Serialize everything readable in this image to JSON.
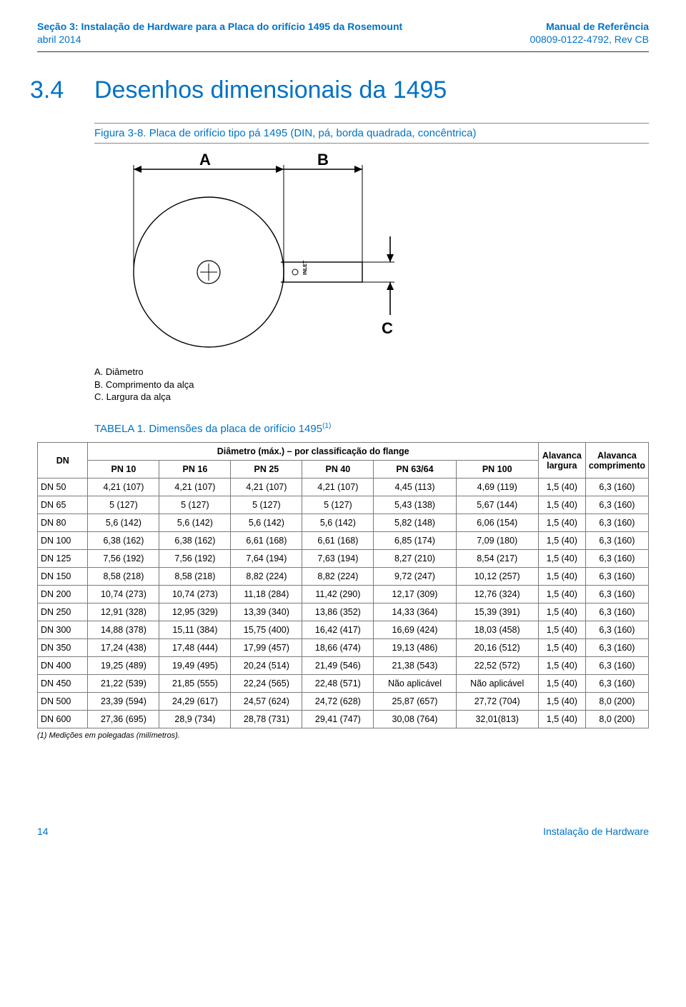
{
  "header": {
    "section": "Seção 3: Instalação de Hardware para a Placa do orifício 1495 da Rosemount",
    "date": "abril 2014",
    "manual": "Manual de Referência",
    "docnum": "00809-0122-4792, Rev CB"
  },
  "section": {
    "num": "3.4",
    "title": "Desenhos dimensionais da 1495"
  },
  "figure": {
    "caption": "Figura 3-8. Placa de orifício tipo pá 1495 (DIN, pá, borda quadrada, concêntrica)",
    "labels": {
      "A": "A",
      "B": "B",
      "C": "C",
      "inlet": "INLET"
    },
    "legend": {
      "a": "A. Diâmetro",
      "b": "B. Comprimento da alça",
      "c": "C. Largura da alça"
    }
  },
  "table": {
    "caption": "TABELA 1. Dimensões da placa de orifício 1495",
    "caption_sup": "(1)",
    "span_header": "Diâmetro (máx.) – por classificação do flange",
    "col_dn": "DN",
    "cols": [
      "PN 10",
      "PN 16",
      "PN 25",
      "PN 40",
      "PN 63/64",
      "PN 100"
    ],
    "col_width": "Alavanca largura",
    "col_len": "Alavanca comprimento",
    "rows": [
      [
        "DN 50",
        "4,21 (107)",
        "4,21 (107)",
        "4,21 (107)",
        "4,21 (107)",
        "4,45 (113)",
        "4,69 (119)",
        "1,5 (40)",
        "6,3 (160)"
      ],
      [
        "DN 65",
        "5 (127)",
        "5 (127)",
        "5 (127)",
        "5 (127)",
        "5,43 (138)",
        "5,67 (144)",
        "1,5 (40)",
        "6,3 (160)"
      ],
      [
        "DN 80",
        "5,6 (142)",
        "5,6 (142)",
        "5,6 (142)",
        "5,6 (142)",
        "5,82 (148)",
        "6,06 (154)",
        "1,5 (40)",
        "6,3 (160)"
      ],
      [
        "DN 100",
        "6,38 (162)",
        "6,38 (162)",
        "6,61 (168)",
        "6,61 (168)",
        "6,85 (174)",
        "7,09 (180)",
        "1,5 (40)",
        "6,3 (160)"
      ],
      [
        "DN 125",
        "7,56 (192)",
        "7,56 (192)",
        "7,64 (194)",
        "7,63 (194)",
        "8,27 (210)",
        "8,54 (217)",
        "1,5 (40)",
        "6,3 (160)"
      ],
      [
        "DN 150",
        "8,58 (218)",
        "8,58 (218)",
        "8,82 (224)",
        "8,82 (224)",
        "9,72 (247)",
        "10,12 (257)",
        "1,5 (40)",
        "6,3 (160)"
      ],
      [
        "DN 200",
        "10,74 (273)",
        "10,74 (273)",
        "11,18 (284)",
        "11,42 (290)",
        "12,17 (309)",
        "12,76 (324)",
        "1,5 (40)",
        "6,3 (160)"
      ],
      [
        "DN 250",
        "12,91 (328)",
        "12,95 (329)",
        "13,39 (340)",
        "13,86 (352)",
        "14,33 (364)",
        "15,39 (391)",
        "1,5 (40)",
        "6,3 (160)"
      ],
      [
        "DN 300",
        "14,88 (378)",
        "15,11 (384)",
        "15,75 (400)",
        "16,42 (417)",
        "16,69 (424)",
        "18,03 (458)",
        "1,5 (40)",
        "6,3 (160)"
      ],
      [
        "DN 350",
        "17,24 (438)",
        "17,48 (444)",
        "17,99 (457)",
        "18,66 (474)",
        "19,13 (486)",
        "20,16 (512)",
        "1,5 (40)",
        "6,3 (160)"
      ],
      [
        "DN 400",
        "19,25 (489)",
        "19,49 (495)",
        "20,24 (514)",
        "21,49 (546)",
        "21,38 (543)",
        "22,52 (572)",
        "1,5 (40)",
        "6,3 (160)"
      ],
      [
        "DN 450",
        "21,22 (539)",
        "21,85 (555)",
        "22,24 (565)",
        "22,48 (571)",
        "Não aplicável",
        "Não aplicável",
        "1,5 (40)",
        "6,3 (160)"
      ],
      [
        "DN 500",
        "23,39 (594)",
        "24,29 (617)",
        "24,57 (624)",
        "24,72 (628)",
        "25,87 (657)",
        "27,72 (704)",
        "1,5 (40)",
        "8,0 (200)"
      ],
      [
        "DN 600",
        "27,36 (695)",
        "28,9 (734)",
        "28,78 (731)",
        "29,41 (747)",
        "30,08 (764)",
        "32,01(813)",
        "1,5 (40)",
        "8,0 (200)"
      ]
    ],
    "footnote": "(1)  Medições em polegadas (milímetros)."
  },
  "footer": {
    "page": "14",
    "text": "Instalação de Hardware"
  },
  "style": {
    "accent": "#0072c6"
  }
}
